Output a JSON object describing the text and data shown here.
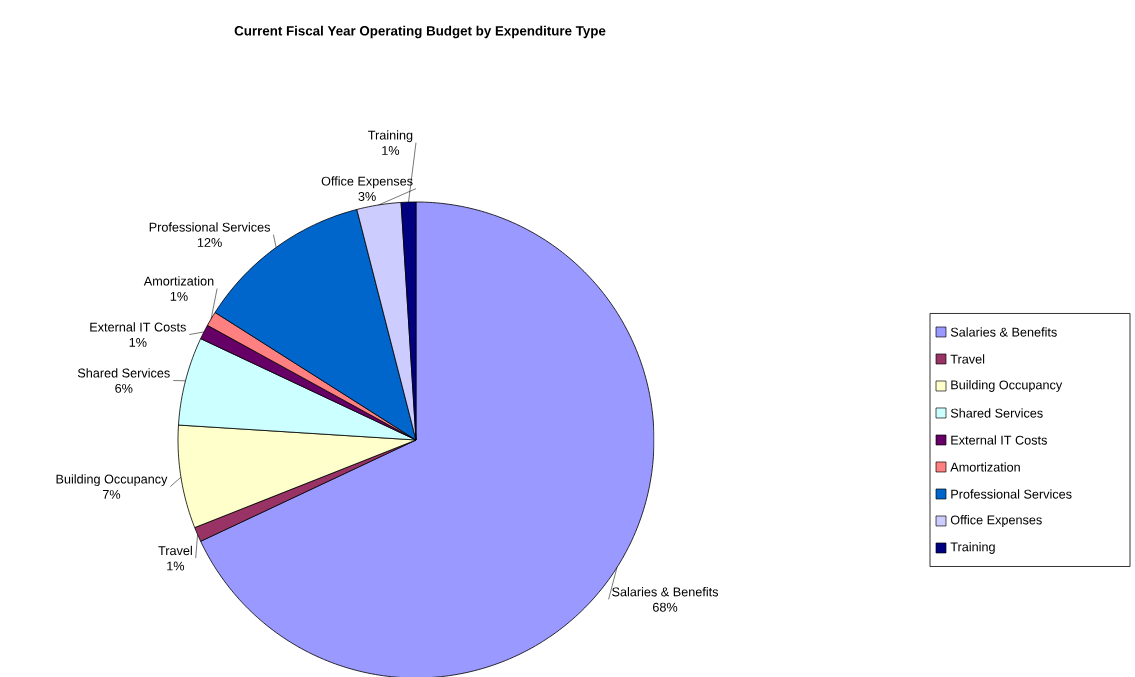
{
  "chart_data": {
    "type": "pie",
    "title": "Current Fiscal Year Operating Budget by Expenditure Type",
    "categories": [
      "Salaries & Benefits",
      "Travel",
      "Building Occupancy",
      "Shared Services",
      "External IT Costs",
      "Amortization",
      "Professional Services",
      "Office Expenses",
      "Training"
    ],
    "values": [
      68,
      1,
      7,
      6,
      1,
      1,
      12,
      3,
      1
    ],
    "value_labels": [
      "68%",
      "1%",
      "7%",
      "6%",
      "1%",
      "1%",
      "12%",
      "3%",
      "1%"
    ],
    "colors": [
      "#9999ff",
      "#993366",
      "#ffffcc",
      "#ccffff",
      "#660066",
      "#ff8080",
      "#0066cc",
      "#ccccff",
      "#000080"
    ],
    "legend": "right"
  }
}
